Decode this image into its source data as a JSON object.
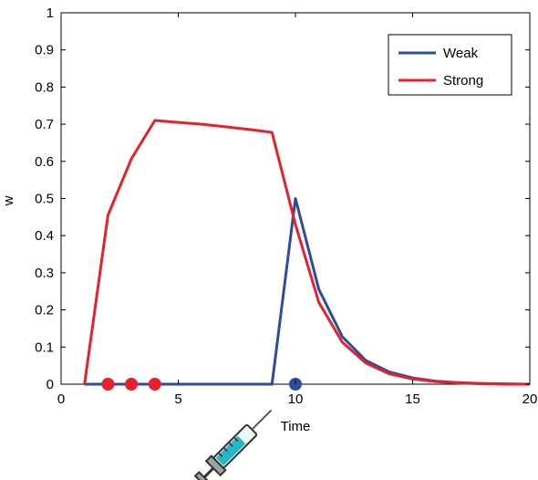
{
  "chart_data": {
    "type": "line",
    "title": "",
    "xlabel": "Time",
    "ylabel": "w",
    "xlim": [
      0,
      20
    ],
    "ylim": [
      0,
      1
    ],
    "xticks": [
      "0",
      "5",
      "10",
      "15",
      "20"
    ],
    "yticks": [
      "0",
      "0.1",
      "0.2",
      "0.3",
      "0.4",
      "0.5",
      "0.6",
      "0.7",
      "0.8",
      "0.9",
      "1"
    ],
    "grid": false,
    "legend_position": "top-right",
    "series": [
      {
        "name": "Weak",
        "color": "#2E4C9E",
        "x": [
          1,
          2,
          3,
          4,
          5,
          6,
          7,
          8,
          9,
          10,
          11,
          12,
          13,
          14,
          15,
          16,
          17,
          18,
          19,
          20
        ],
        "values": [
          0,
          0,
          0,
          0,
          0,
          0,
          0,
          0,
          0,
          0.5,
          0.255,
          0.128,
          0.064,
          0.033,
          0.017,
          0.008,
          0.004,
          0.002,
          0.001,
          0
        ]
      },
      {
        "name": "Strong",
        "color": "#E8202A",
        "x": [
          1,
          2,
          3,
          4,
          5,
          6,
          7,
          8,
          9,
          10,
          11,
          12,
          13,
          14,
          15,
          16,
          17,
          18,
          19,
          20
        ],
        "values": [
          0,
          0.455,
          0.607,
          0.71,
          0.705,
          0.7,
          0.693,
          0.686,
          0.678,
          0.43,
          0.22,
          0.113,
          0.057,
          0.028,
          0.014,
          0.007,
          0.003,
          0.001,
          0,
          0
        ]
      }
    ],
    "markers": [
      {
        "x": 2,
        "y": 0,
        "color": "#E8202A"
      },
      {
        "x": 3,
        "y": 0,
        "color": "#E8202A"
      },
      {
        "x": 4,
        "y": 0,
        "color": "#E8202A"
      },
      {
        "x": 10,
        "y": 0,
        "color": "#2E4C9E"
      }
    ],
    "annotation_icon": "syringe-icon"
  }
}
